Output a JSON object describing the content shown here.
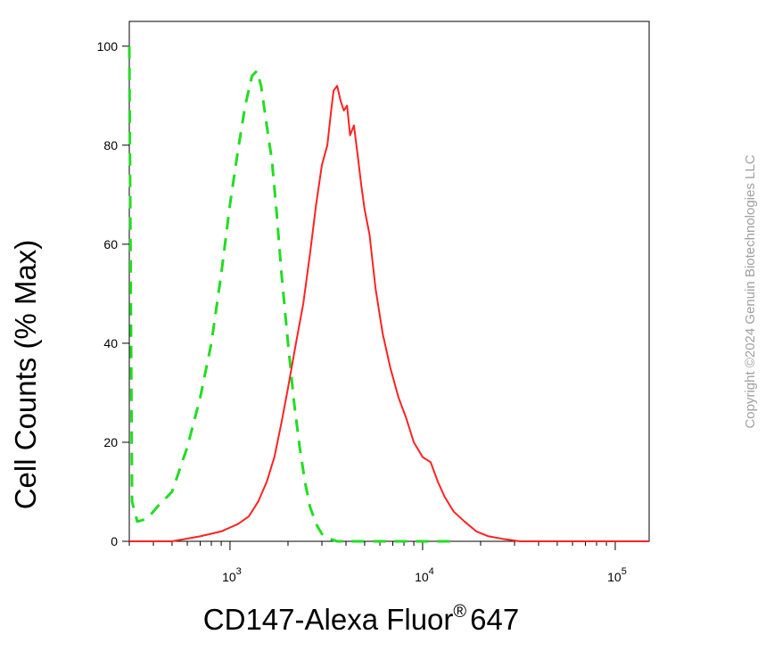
{
  "chart_data": {
    "type": "line",
    "title": "",
    "xlabel": "CD147-Alexa Fluor",
    "xlabel_superscript": "®",
    "xlabel_suffix": "647",
    "ylabel": "Cell Counts (% Max)",
    "x_scale": "log",
    "xlim": [
      300,
      150000
    ],
    "ylim": [
      0,
      105
    ],
    "grid": false,
    "legend": "none",
    "yticks": [
      0,
      20,
      40,
      60,
      80,
      100
    ],
    "xticks": [
      {
        "value": 1000,
        "base": "10",
        "exp": "3"
      },
      {
        "value": 10000,
        "base": "10",
        "exp": "4"
      },
      {
        "value": 100000,
        "base": "10",
        "exp": "5"
      }
    ],
    "series": [
      {
        "style": "dashed",
        "color": "#22dd22",
        "x": [
          300,
          310,
          330,
          370,
          420,
          500,
          600,
          700,
          800,
          900,
          1000,
          1100,
          1200,
          1300,
          1380,
          1450,
          1550,
          1650,
          1750,
          1850,
          2000,
          2150,
          2300,
          2450,
          2600,
          2800,
          3000,
          3300,
          3600,
          4000,
          5000,
          7000,
          10000,
          15000
        ],
        "y": [
          100,
          8,
          4,
          4.5,
          7,
          10,
          19,
          29,
          40,
          54,
          68,
          79,
          88,
          94,
          95,
          92,
          84,
          77,
          66,
          54,
          40,
          28,
          19,
          12,
          7,
          3.5,
          1.5,
          0.5,
          0,
          0,
          0,
          0,
          0,
          0
        ]
      },
      {
        "style": "solid",
        "color": "#ff2222",
        "x": [
          300,
          500,
          700,
          900,
          1100,
          1250,
          1400,
          1550,
          1700,
          1850,
          2000,
          2200,
          2400,
          2600,
          2800,
          3000,
          3200,
          3350,
          3450,
          3600,
          3750,
          3900,
          4050,
          4200,
          4400,
          4600,
          4800,
          5000,
          5300,
          5700,
          6200,
          6800,
          7500,
          8200,
          9000,
          10000,
          11000,
          12000,
          13000,
          14500,
          16500,
          19000,
          22000,
          26000,
          32000,
          50000,
          100000,
          150000
        ],
        "y": [
          0,
          0,
          1,
          2,
          3.5,
          5,
          8,
          12,
          17,
          24,
          31,
          40,
          48,
          58,
          68,
          76,
          80,
          87,
          91,
          92,
          89,
          87,
          88,
          82,
          84,
          78,
          72,
          67,
          62,
          51,
          42,
          35,
          29,
          25,
          20,
          17,
          16,
          12,
          9,
          6,
          4,
          2,
          1,
          0.5,
          0,
          0,
          0,
          0
        ]
      }
    ]
  },
  "copyright": "Copyright ©2024 Genuin Biotechnologies LLC"
}
